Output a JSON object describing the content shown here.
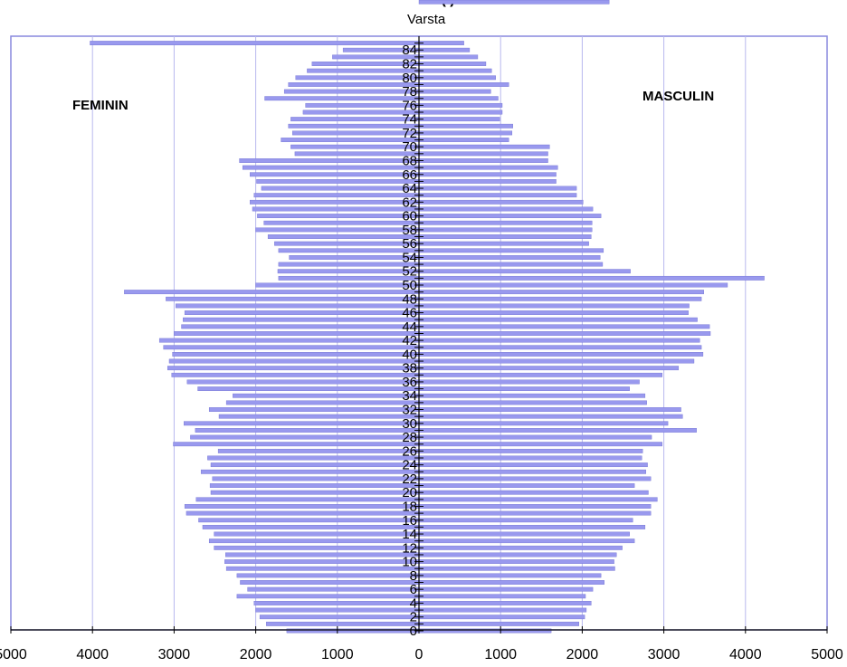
{
  "chart_data": {
    "type": "bar",
    "title": "(                    )",
    "age_axis_title": "Varsta",
    "female_label": "FEMININ",
    "male_label": "MASCULIN",
    "xlim": [
      -5000,
      5000
    ],
    "x_ticks": [
      -5000,
      -4000,
      -3000,
      -2000,
      -1000,
      0,
      1000,
      2000,
      3000,
      4000,
      5000
    ],
    "x_tick_labels": [
      "5000",
      "4000",
      "3000",
      "2000",
      "1000",
      "0",
      "1000",
      "2000",
      "3000",
      "4000",
      "5000"
    ],
    "age_labels": [
      "0",
      "2",
      "4",
      "6",
      "8",
      "10",
      "12",
      "14",
      "16",
      "18",
      "20",
      "22",
      "24",
      "26",
      "28",
      "30",
      "32",
      "34",
      "36",
      "38",
      "40",
      "42",
      "44",
      "46",
      "48",
      "50",
      "52",
      "54",
      "56",
      "58",
      "60",
      "62",
      "64",
      "66",
      "68",
      "70",
      "72",
      "74",
      "76",
      "78",
      "80",
      "82",
      "84"
    ],
    "grid": true,
    "bar_color": "#9999ee",
    "plot_border_color": "#8888dd",
    "series": [
      {
        "name": "FEMININ",
        "ages": [
          0,
          1,
          2,
          3,
          4,
          5,
          6,
          7,
          8,
          9,
          10,
          11,
          12,
          13,
          14,
          15,
          16,
          17,
          18,
          19,
          20,
          21,
          22,
          23,
          24,
          25,
          26,
          27,
          28,
          29,
          30,
          31,
          32,
          33,
          34,
          35,
          36,
          37,
          38,
          39,
          40,
          41,
          42,
          43,
          44,
          45,
          46,
          47,
          48,
          49,
          50,
          51,
          52,
          53,
          54,
          55,
          56,
          57,
          58,
          59,
          60,
          61,
          62,
          63,
          64,
          65,
          66,
          67,
          68,
          69,
          70,
          71,
          72,
          73,
          74,
          75,
          76,
          77,
          78,
          79,
          80,
          81,
          82,
          83,
          84,
          85
        ],
        "values": [
          1620,
          1870,
          1950,
          2000,
          2020,
          2230,
          2100,
          2190,
          2230,
          2360,
          2380,
          2370,
          2510,
          2570,
          2510,
          2650,
          2700,
          2850,
          2870,
          2730,
          2550,
          2560,
          2530,
          2670,
          2550,
          2590,
          2460,
          3010,
          2800,
          2740,
          2880,
          2450,
          2570,
          2360,
          2280,
          2710,
          2840,
          3030,
          3080,
          3060,
          3020,
          3130,
          3180,
          3000,
          2910,
          2890,
          2870,
          2980,
          3100,
          3610,
          2000,
          1720,
          1730,
          1720,
          1590,
          1720,
          1770,
          1850,
          2000,
          1900,
          1980,
          2040,
          2070,
          2020,
          1930,
          1990,
          2070,
          2160,
          2200,
          1520,
          1570,
          1690,
          1550,
          1600,
          1570,
          1420,
          1390,
          1890,
          1650,
          1600,
          1510,
          1370,
          1310,
          1060,
          930,
          4030
        ]
      },
      {
        "name": "MASCULIN",
        "ages": [
          0,
          1,
          2,
          3,
          4,
          5,
          6,
          7,
          8,
          9,
          10,
          11,
          12,
          13,
          14,
          15,
          16,
          17,
          18,
          19,
          20,
          21,
          22,
          23,
          24,
          25,
          26,
          27,
          28,
          29,
          30,
          31,
          32,
          33,
          34,
          35,
          36,
          37,
          38,
          39,
          40,
          41,
          42,
          43,
          44,
          45,
          46,
          47,
          48,
          49,
          50,
          51,
          52,
          53,
          54,
          55,
          56,
          57,
          58,
          59,
          60,
          61,
          62,
          63,
          64,
          65,
          66,
          67,
          68,
          69,
          70,
          71,
          72,
          73,
          74,
          75,
          76,
          77,
          78,
          79,
          80,
          81,
          82,
          83,
          84,
          85
        ],
        "values": [
          1620,
          1960,
          2030,
          2050,
          2110,
          2040,
          2130,
          2270,
          2230,
          2400,
          2390,
          2420,
          2490,
          2640,
          2580,
          2770,
          2620,
          2840,
          2840,
          2920,
          2810,
          2640,
          2840,
          2780,
          2800,
          2730,
          2740,
          2980,
          2850,
          3400,
          3050,
          3230,
          3210,
          2790,
          2770,
          2580,
          2700,
          2980,
          3180,
          3370,
          3480,
          3460,
          3440,
          3570,
          3560,
          3410,
          3300,
          3310,
          3460,
          3490,
          3780,
          4230,
          2590,
          2250,
          2220,
          2260,
          2080,
          2110,
          2120,
          2120,
          2230,
          2130,
          2010,
          1930,
          1930,
          1680,
          1680,
          1700,
          1580,
          1580,
          1600,
          1100,
          1140,
          1150,
          990,
          1020,
          1020,
          970,
          880,
          1100,
          940,
          890,
          820,
          720,
          620,
          550,
          2330
        ]
      }
    ]
  }
}
